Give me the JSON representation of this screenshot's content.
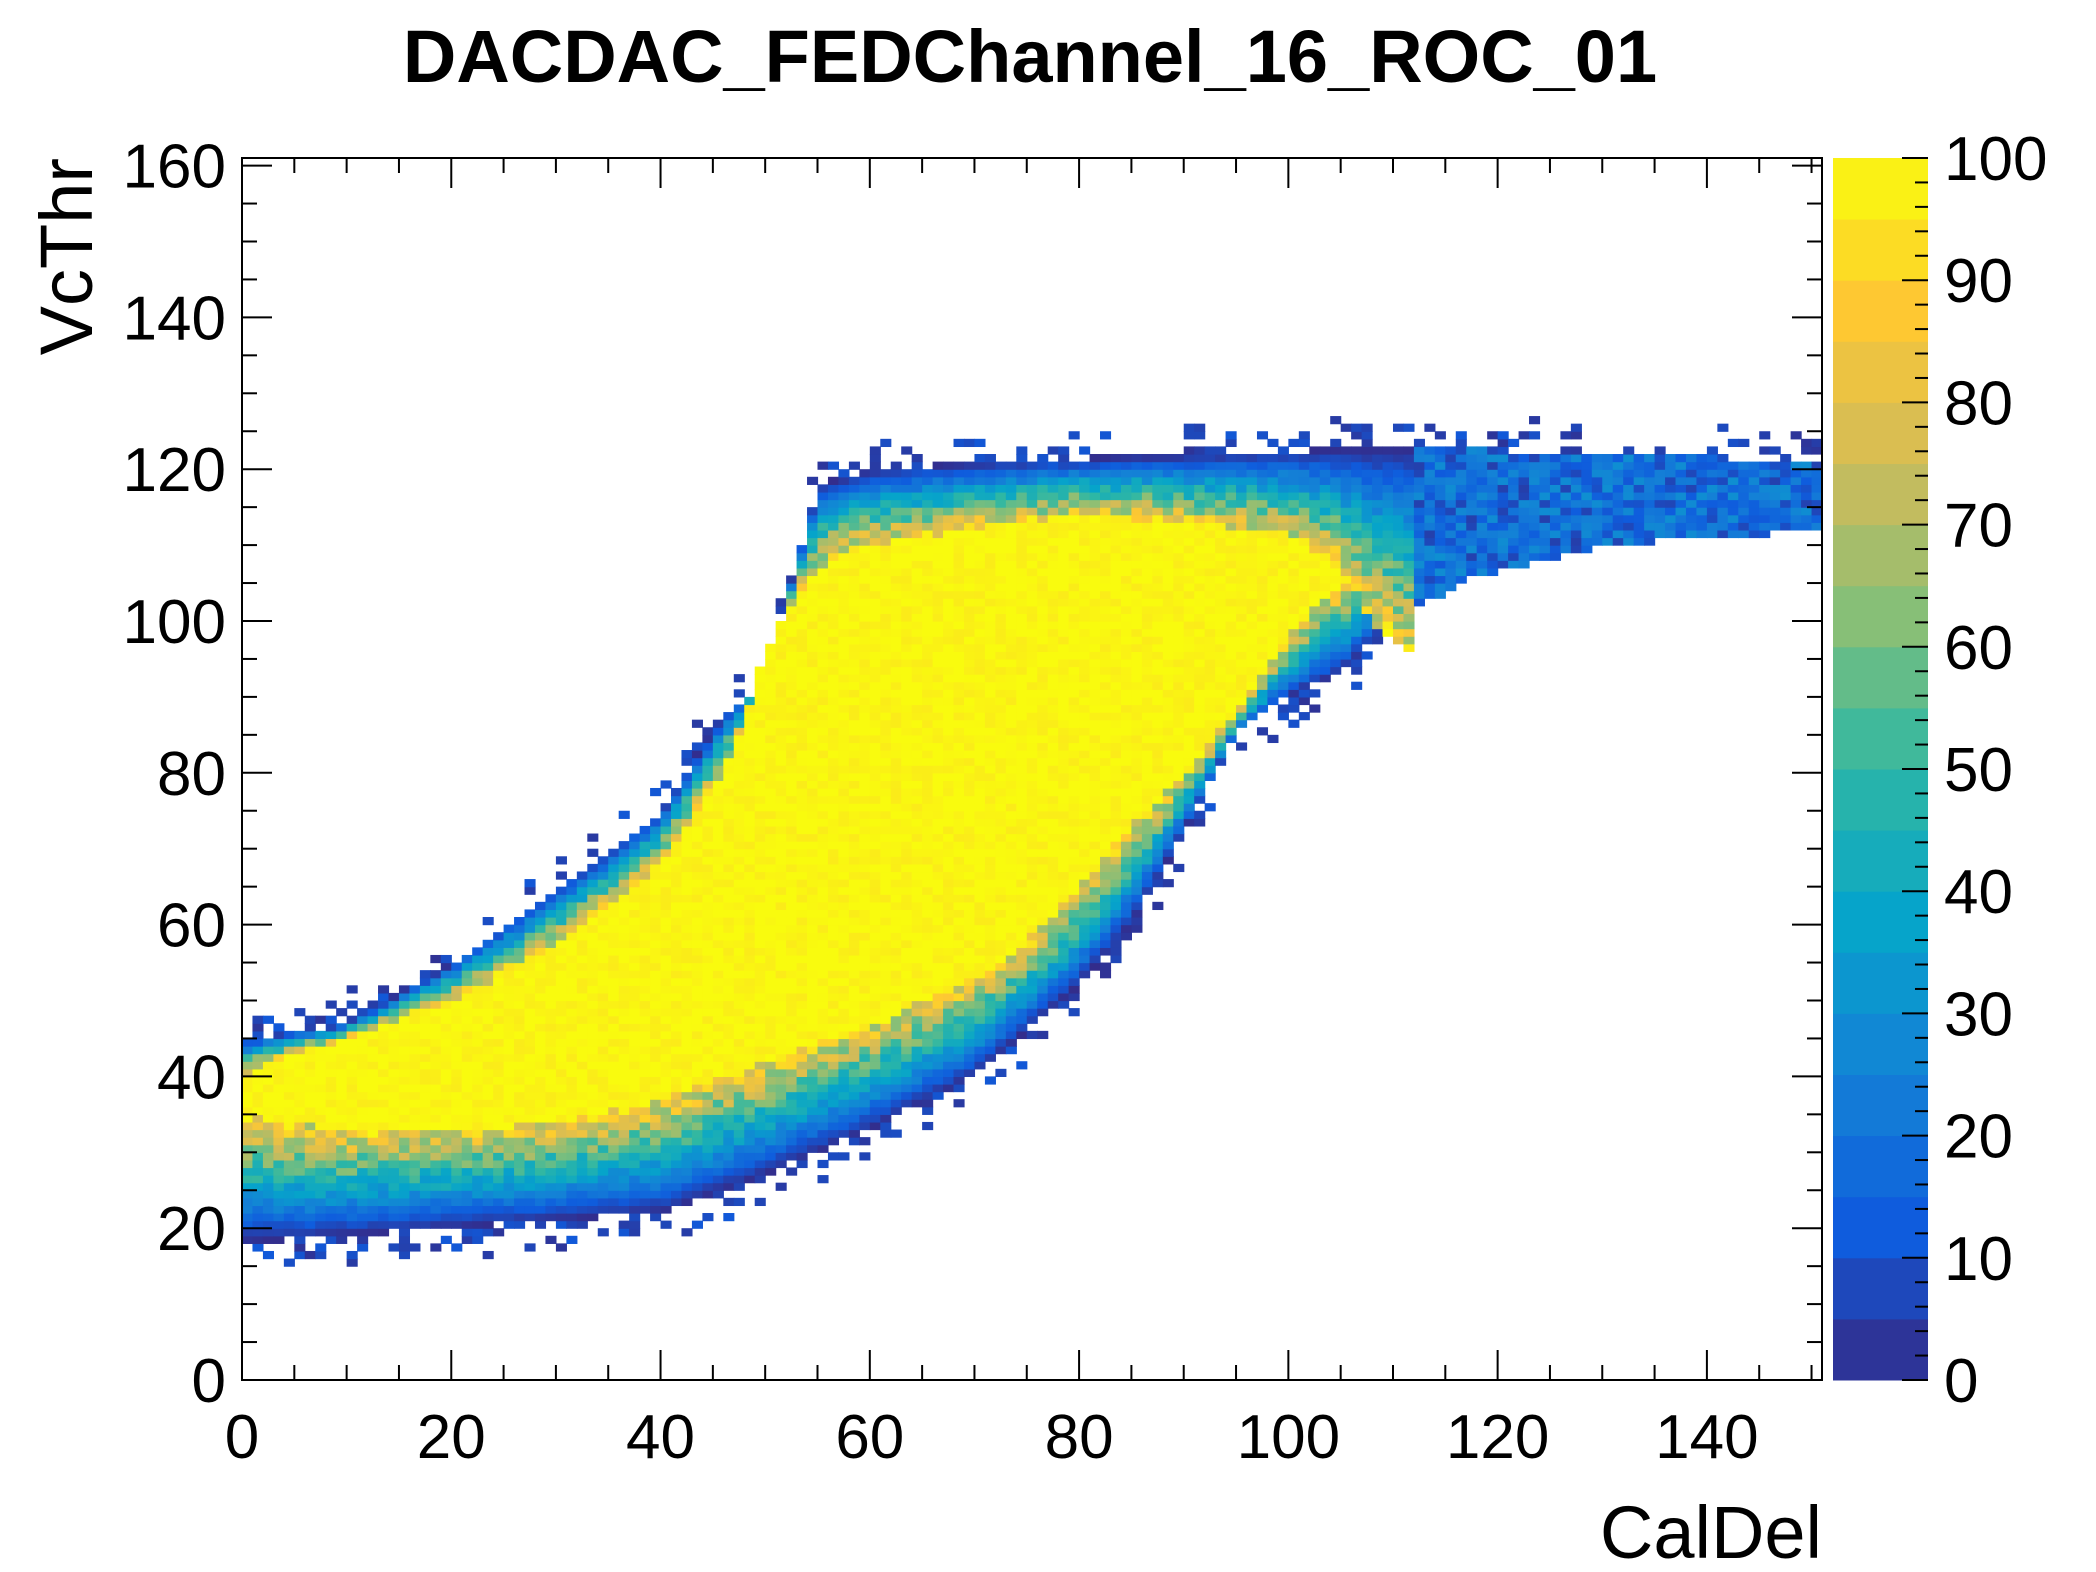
{
  "chart_data": {
    "type": "heatmap",
    "title": "DACDAC_FEDChannel_16_ROC_01",
    "xlabel": "CalDel",
    "ylabel": "VcThr",
    "xlim": [
      0,
      151
    ],
    "ylim": [
      0,
      161
    ],
    "x_ticks": [
      "0",
      "20",
      "40",
      "60",
      "80",
      "100",
      "120",
      "140"
    ],
    "y_ticks": [
      "0",
      "20",
      "40",
      "60",
      "80",
      "100",
      "120",
      "140",
      "160"
    ],
    "z_range": [
      0,
      100
    ],
    "z_ticks": [
      "0",
      "10",
      "20",
      "30",
      "40",
      "50",
      "60",
      "70",
      "80",
      "90",
      "100"
    ],
    "palette": "kBird",
    "colors": [
      "#352a87",
      "#0f5cdd",
      "#1481d6",
      "#06a4ca",
      "#2eb7a4",
      "#87bf77",
      "#d1bb59",
      "#fec832",
      "#f9fb0e"
    ],
    "grid": false,
    "colorbar": "right",
    "bins": {
      "x": 151,
      "y": 161
    },
    "plateau": {
      "value": 100,
      "description_points": [
        {
          "caldel": 0,
          "vcthr_low": 35,
          "vcthr_high": 40
        },
        {
          "caldel": 20,
          "vcthr_low": 33,
          "vcthr_high": 50
        },
        {
          "caldel": 40,
          "vcthr_low": 37,
          "vcthr_high": 68
        },
        {
          "caldel": 50,
          "vcthr_low": 42,
          "vcthr_high": 98
        },
        {
          "caldel": 60,
          "vcthr_low": 47,
          "vcthr_high": 110
        },
        {
          "caldel": 80,
          "vcthr_low": 65,
          "vcthr_high": 114
        },
        {
          "caldel": 95,
          "vcthr_low": 88,
          "vcthr_high": 112
        },
        {
          "caldel": 105,
          "vcthr_low": 102,
          "vcthr_high": 108
        }
      ]
    }
  }
}
